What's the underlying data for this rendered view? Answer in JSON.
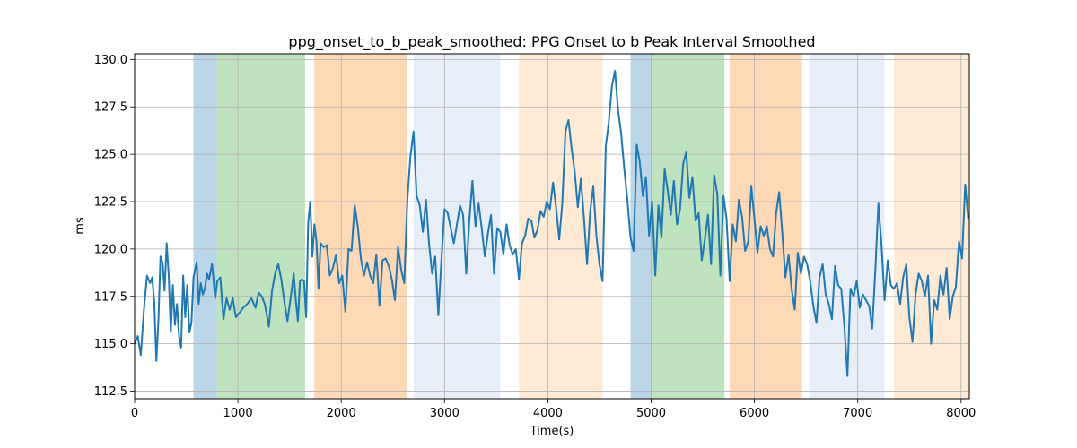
{
  "chart_data": {
    "type": "line",
    "title": "ppg_onset_to_b_peak_smoothed: PPG Onset to b Peak Interval Smoothed",
    "xlabel": "Time(s)",
    "ylabel": "ms",
    "xlim": [
      0,
      8080
    ],
    "ylim": [
      112.1,
      130.3
    ],
    "xticks": [
      0,
      1000,
      2000,
      3000,
      4000,
      5000,
      6000,
      7000,
      8000
    ],
    "yticks": [
      112.5,
      115.0,
      117.5,
      120.0,
      122.5,
      125.0,
      127.5,
      130.0
    ],
    "grid": true,
    "line_color": "#1f77b4",
    "bands": [
      {
        "x0": 570,
        "x1": 795,
        "color": "#1f77b4",
        "opacity": 0.3
      },
      {
        "x0": 795,
        "x1": 1650,
        "color": "#2ca02c",
        "opacity": 0.3
      },
      {
        "x0": 1740,
        "x1": 2640,
        "color": "#ff7f0e",
        "opacity": 0.3
      },
      {
        "x0": 2700,
        "x1": 3540,
        "color": "#aec7e8",
        "opacity": 0.3
      },
      {
        "x0": 3720,
        "x1": 4530,
        "color": "#ffbb78",
        "opacity": 0.3
      },
      {
        "x0": 4800,
        "x1": 5000,
        "color": "#1f77b4",
        "opacity": 0.3
      },
      {
        "x0": 5000,
        "x1": 5710,
        "color": "#2ca02c",
        "opacity": 0.3
      },
      {
        "x0": 5760,
        "x1": 6460,
        "color": "#ff7f0e",
        "opacity": 0.3
      },
      {
        "x0": 6530,
        "x1": 7260,
        "color": "#aec7e8",
        "opacity": 0.3
      },
      {
        "x0": 7350,
        "x1": 8080,
        "color": "#ffbb78",
        "opacity": 0.3
      }
    ],
    "series": [
      {
        "x": [
          0,
          30,
          60,
          90,
          120,
          150,
          170,
          190,
          210,
          230,
          250,
          270,
          290,
          310,
          330,
          350,
          370,
          390,
          410,
          430,
          450,
          470,
          490,
          510,
          530,
          550,
          570,
          600,
          620,
          640,
          660,
          680,
          700,
          720,
          750,
          780,
          800,
          830,
          860,
          890,
          920,
          950,
          980,
          1010,
          1050,
          1090,
          1130,
          1170,
          1200,
          1230,
          1260,
          1300,
          1330,
          1360,
          1390,
          1420,
          1450,
          1480,
          1510,
          1540,
          1560,
          1580,
          1600,
          1620,
          1640,
          1660,
          1680,
          1700,
          1720,
          1740,
          1760,
          1780,
          1800,
          1830,
          1860,
          1890,
          1920,
          1950,
          1980,
          2010,
          2040,
          2070,
          2100,
          2130,
          2160,
          2190,
          2220,
          2250,
          2280,
          2310,
          2340,
          2370,
          2400,
          2430,
          2460,
          2490,
          2520,
          2550,
          2580,
          2610,
          2640,
          2670,
          2700,
          2730,
          2760,
          2790,
          2820,
          2850,
          2880,
          2910,
          2940,
          2970,
          3000,
          3030,
          3060,
          3090,
          3120,
          3150,
          3180,
          3210,
          3240,
          3270,
          3300,
          3330,
          3360,
          3390,
          3420,
          3450,
          3480,
          3510,
          3540,
          3570,
          3600,
          3630,
          3660,
          3690,
          3720,
          3750,
          3780,
          3810,
          3840,
          3870,
          3900,
          3930,
          3960,
          3990,
          4020,
          4050,
          4080,
          4110,
          4140,
          4170,
          4200,
          4230,
          4260,
          4290,
          4320,
          4350,
          4380,
          4410,
          4440,
          4470,
          4500,
          4530,
          4560,
          4590,
          4620,
          4650,
          4680,
          4710,
          4740,
          4770,
          4800,
          4830,
          4860,
          4890,
          4920,
          4950,
          4980,
          5010,
          5040,
          5070,
          5100,
          5130,
          5160,
          5190,
          5220,
          5250,
          5280,
          5310,
          5340,
          5370,
          5400,
          5430,
          5460,
          5490,
          5520,
          5550,
          5580,
          5610,
          5640,
          5670,
          5700,
          5730,
          5760,
          5790,
          5820,
          5850,
          5880,
          5910,
          5940,
          5970,
          6000,
          6030,
          6060,
          6090,
          6120,
          6150,
          6180,
          6210,
          6240,
          6270,
          6300,
          6330,
          6360,
          6390,
          6420,
          6450,
          6480,
          6510,
          6540,
          6570,
          6600,
          6630,
          6660,
          6690,
          6720,
          6750,
          6780,
          6810,
          6840,
          6870,
          6900,
          6930,
          6960,
          6990,
          7020,
          7050,
          7080,
          7110,
          7140,
          7170,
          7200,
          7230,
          7260,
          7290,
          7320,
          7350,
          7380,
          7410,
          7440,
          7470,
          7500,
          7530,
          7560,
          7590,
          7620,
          7650,
          7680,
          7710,
          7740,
          7770,
          7800,
          7830,
          7860,
          7890,
          7920,
          7950,
          7980,
          8010,
          8040,
          8070
        ],
        "y": [
          115.0,
          115.4,
          114.4,
          116.8,
          118.6,
          118.2,
          118.5,
          117.2,
          114.1,
          116.2,
          119.6,
          119.3,
          117.8,
          120.3,
          118.6,
          115.6,
          118.1,
          116.0,
          117.1,
          115.4,
          114.8,
          118.6,
          116.4,
          118.1,
          115.6,
          116.1,
          118.5,
          119.3,
          117.1,
          118.2,
          117.6,
          117.9,
          118.7,
          118.4,
          119.2,
          117.4,
          118.3,
          118.5,
          116.3,
          117.4,
          116.8,
          117.4,
          116.4,
          116.6,
          116.9,
          117.1,
          117.4,
          116.9,
          117.7,
          117.5,
          117.1,
          115.9,
          117.8,
          118.7,
          119.2,
          118.4,
          117.2,
          116.2,
          117.4,
          118.7,
          117.3,
          116.2,
          118.3,
          118.4,
          118.3,
          116.4,
          121.4,
          122.5,
          119.6,
          121.3,
          120.4,
          117.9,
          120.3,
          120.1,
          120.2,
          118.6,
          119.0,
          119.7,
          118.2,
          118.6,
          116.7,
          120.0,
          119.9,
          122.3,
          121.2,
          119.5,
          118.6,
          119.3,
          118.6,
          118.2,
          119.7,
          117.0,
          119.4,
          119.5,
          119.1,
          118.4,
          117.3,
          120.1,
          118.9,
          118.2,
          122.6,
          124.9,
          126.2,
          122.8,
          122.3,
          120.9,
          122.6,
          120.3,
          118.7,
          119.6,
          116.5,
          119.4,
          122.1,
          121.9,
          121.1,
          120.3,
          121.3,
          122.3,
          121.8,
          118.7,
          121.5,
          123.6,
          121.2,
          122.4,
          121.1,
          119.6,
          120.8,
          121.8,
          118.7,
          121.1,
          120.9,
          119.7,
          121.3,
          120.2,
          119.7,
          120.0,
          118.4,
          120.3,
          120.7,
          121.6,
          121.5,
          120.6,
          121.0,
          122.0,
          121.7,
          122.5,
          122.1,
          123.5,
          122.2,
          120.5,
          122.4,
          126.2,
          126.8,
          125.3,
          124.1,
          122.2,
          123.7,
          121.6,
          119.2,
          122.0,
          123.3,
          120.7,
          119.2,
          118.3,
          125.4,
          126.7,
          128.6,
          129.4,
          127.3,
          126.1,
          124.2,
          122.6,
          120.6,
          119.9,
          125.5,
          124.6,
          122.8,
          123.8,
          120.7,
          122.5,
          118.6,
          122.3,
          120.6,
          124.2,
          123.1,
          121.8,
          123.6,
          121.3,
          122.1,
          124.5,
          125.1,
          122.7,
          123.8,
          121.5,
          121.9,
          119.4,
          120.5,
          121.8,
          119.2,
          123.9,
          122.9,
          118.6,
          122.8,
          121.6,
          118.3,
          121.3,
          120.4,
          122.6,
          121.7,
          119.9,
          120.4,
          123.3,
          121.6,
          119.8,
          121.2,
          120.7,
          121.2,
          120.0,
          119.6,
          121.9,
          123.0,
          120.8,
          118.5,
          119.7,
          117.9,
          116.8,
          119.8,
          118.7,
          119.6,
          119.2,
          118.3,
          117.0,
          116.1,
          118.5,
          119.2,
          117.6,
          117.1,
          116.3,
          119.1,
          118.1,
          117.9,
          116.0,
          113.3,
          117.9,
          117.5,
          118.3,
          116.9,
          117.6,
          117.3,
          117.0,
          115.8,
          118.9,
          122.4,
          120.2,
          117.3,
          119.4,
          118.1,
          117.9,
          118.2,
          117.1,
          118.5,
          119.2,
          116.4,
          115.1,
          117.6,
          118.7,
          118.3,
          117.5,
          118.6,
          115.0,
          117.3,
          116.8,
          118.6,
          117.6,
          119.0,
          116.3,
          117.5,
          118.0,
          120.4,
          119.5,
          123.4,
          121.6
        ]
      }
    ]
  }
}
